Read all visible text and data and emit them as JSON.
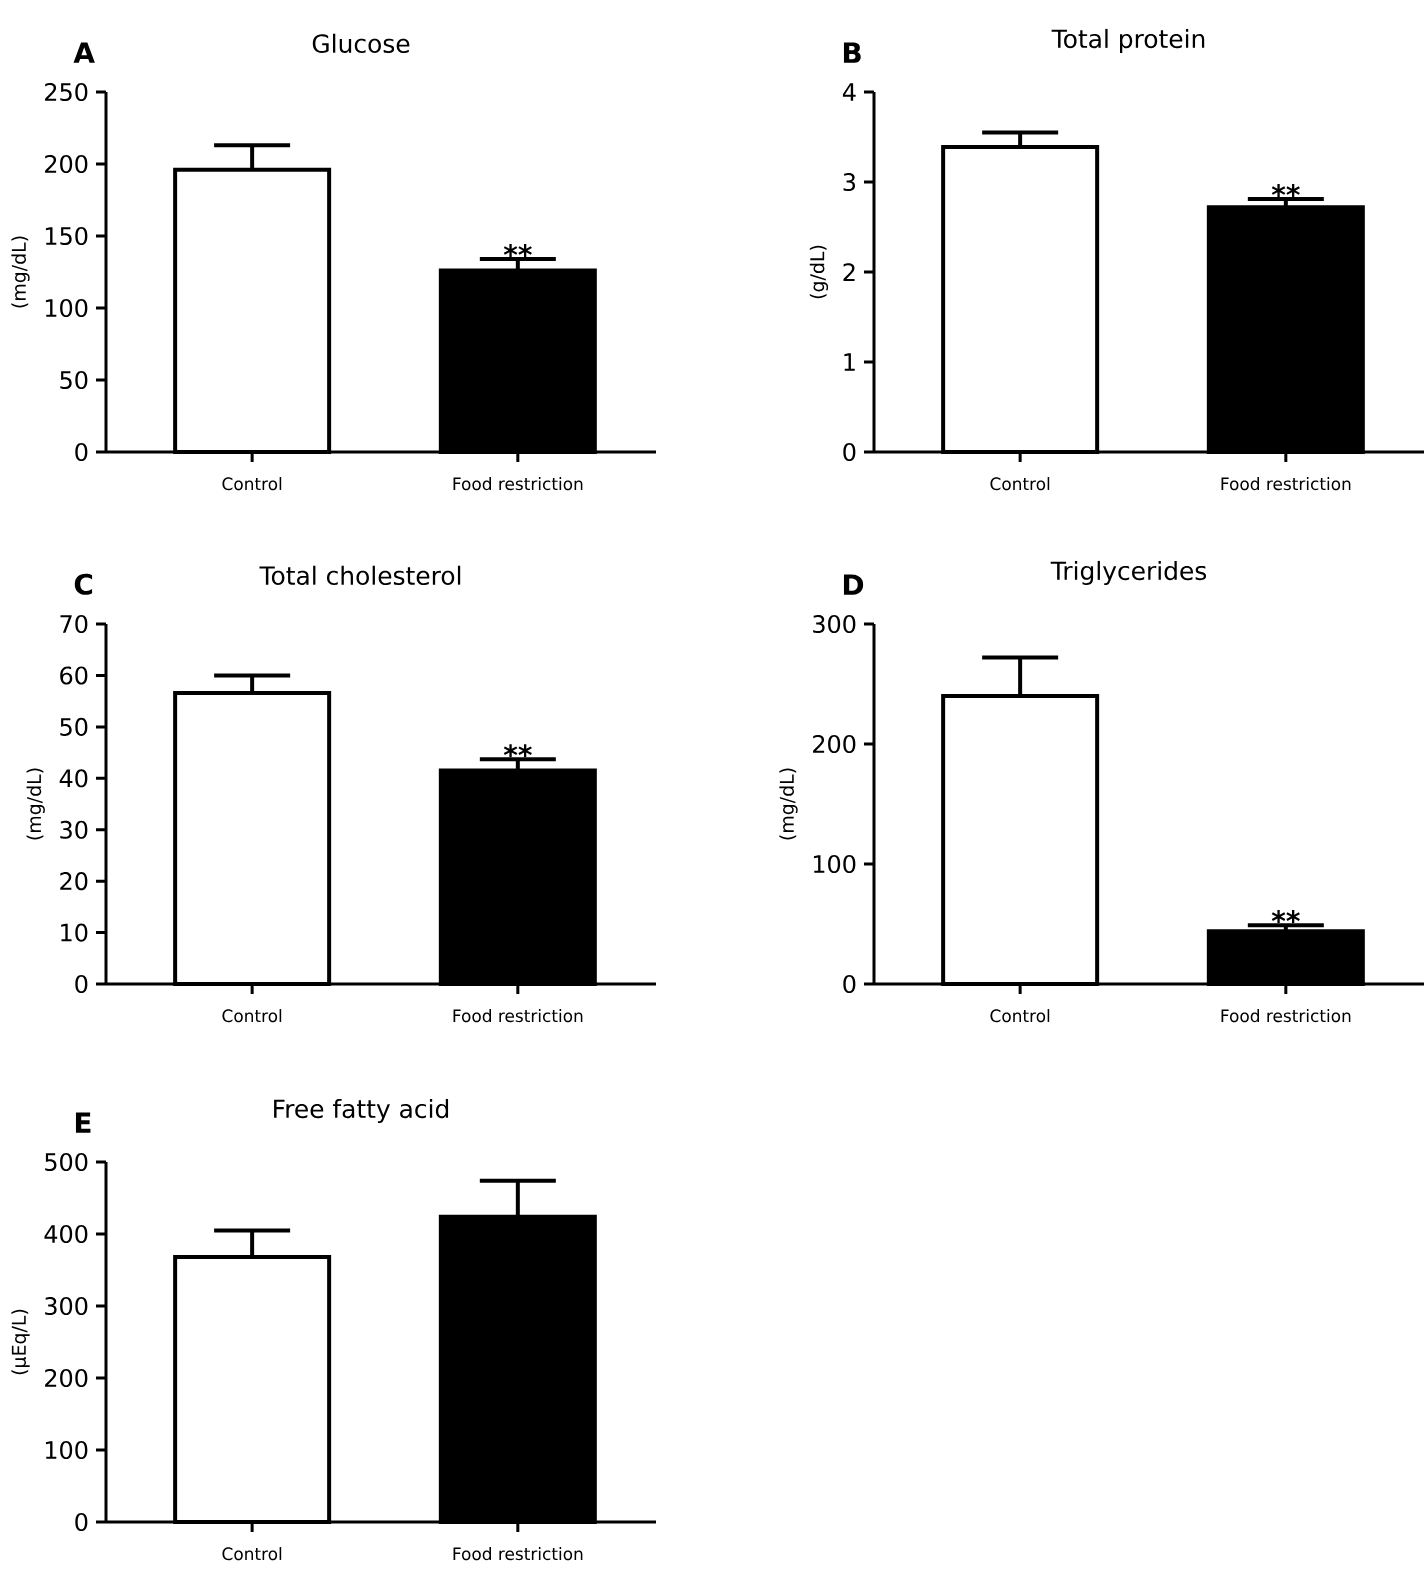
{
  "chart_data": [
    {
      "type": "bar",
      "title": "Glucose",
      "ylabel": "(mg/dL)",
      "categories": [
        "Control",
        "Food restriction"
      ],
      "values": [
        196,
        126
      ],
      "colors": [
        "#ffffff",
        "#000000"
      ],
      "errors": [
        [
          196,
          213
        ],
        [
          126,
          134
        ]
      ],
      "ylim": [
        0,
        250
      ],
      "yticks": [
        0,
        50,
        100,
        150,
        200,
        250
      ],
      "annotations": [
        "A",
        {
          "text": "**",
          "x": "Food restriction",
          "y": 134
        }
      ]
    },
    {
      "type": "bar",
      "title": "Total protein",
      "ylabel": "(g/dL)",
      "categories": [
        "Control",
        "Food restriction"
      ],
      "values": [
        3.39,
        2.72
      ],
      "colors": [
        "#ffffff",
        "#000000"
      ],
      "errors": [
        [
          3.39,
          3.55
        ],
        [
          2.72,
          2.81
        ]
      ],
      "ylim": [
        0,
        4
      ],
      "yticks": [
        0,
        1,
        2,
        3,
        4
      ],
      "annotations": [
        "B",
        {
          "text": "**",
          "x": "Food restriction",
          "y": 2.81
        }
      ]
    },
    {
      "type": "bar",
      "title": "Total cholesterol",
      "ylabel": "(mg/dL)",
      "categories": [
        "Control",
        "Food restriction"
      ],
      "values": [
        56.6,
        41.5
      ],
      "colors": [
        "#ffffff",
        "#000000"
      ],
      "errors": [
        [
          56.6,
          60
        ],
        [
          41.5,
          43.7
        ]
      ],
      "ylim": [
        0,
        70
      ],
      "yticks": [
        0,
        10,
        20,
        30,
        40,
        50,
        60,
        70
      ],
      "annotations": [
        "C",
        {
          "text": "**",
          "x": "Food restriction",
          "y": 43.7
        }
      ]
    },
    {
      "type": "bar",
      "title": "Triglycerides",
      "ylabel": "(mg/dL)",
      "categories": [
        "Control",
        "Food restriction"
      ],
      "values": [
        240,
        44
      ],
      "colors": [
        "#ffffff",
        "#000000"
      ],
      "errors": [
        [
          240,
          272
        ],
        [
          44,
          49
        ]
      ],
      "ylim": [
        0,
        300
      ],
      "yticks": [
        0,
        100,
        200,
        300
      ],
      "annotations": [
        "D",
        {
          "text": "**",
          "x": "Food restriction",
          "y": 49
        }
      ]
    },
    {
      "type": "bar",
      "title": "Free fatty acid",
      "ylabel": "(μEq/L)",
      "categories": [
        "Control",
        "Food restriction"
      ],
      "values": [
        368,
        424
      ],
      "colors": [
        "#ffffff",
        "#000000"
      ],
      "errors": [
        [
          368,
          405
        ],
        [
          424,
          474
        ]
      ],
      "ylim": [
        0,
        500
      ],
      "yticks": [
        0,
        100,
        200,
        300,
        400,
        500
      ],
      "annotations": [
        "E"
      ]
    }
  ]
}
